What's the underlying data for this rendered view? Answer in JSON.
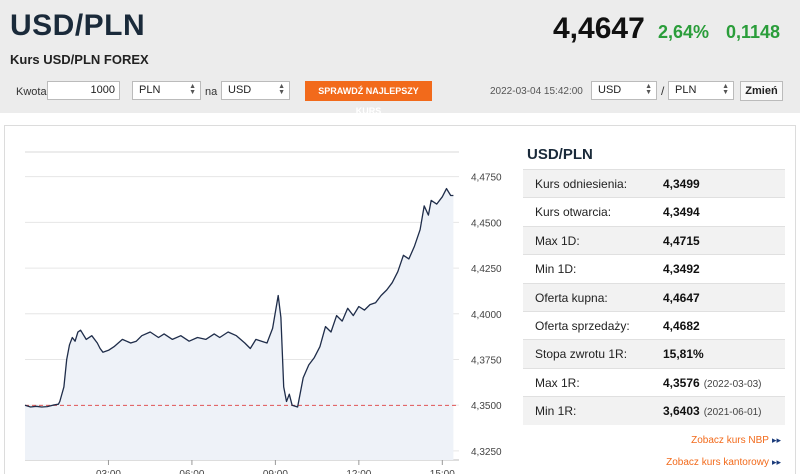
{
  "header": {
    "pair": "USD/PLN",
    "subtitle": "Kurs USD/PLN FOREX",
    "price": "4,4647",
    "change_pct": "2,64%",
    "change_abs": "0,1148",
    "change_color": "#2a9d3a"
  },
  "converter": {
    "amount_label": "Kwota",
    "amount_value": "1000",
    "from_currency": "PLN",
    "to_label": "na",
    "to_currency": "USD",
    "check_button": "SPRAWDŹ NAJLEPSZY KURS",
    "timestamp": "2022-03-04 15:42:00",
    "pair_from": "USD",
    "pair_sep": "/",
    "pair_to": "PLN",
    "change_button": "Zmień",
    "accent_color": "#f26a1b"
  },
  "stats": {
    "title": "USD/PLN",
    "rows": [
      {
        "label": "Kurs odniesienia:",
        "value": "4,3499",
        "date": ""
      },
      {
        "label": "Kurs otwarcia:",
        "value": "4,3494",
        "date": ""
      },
      {
        "label": "Max 1D:",
        "value": "4,4715",
        "date": ""
      },
      {
        "label": "Min 1D:",
        "value": "4,3492",
        "date": ""
      },
      {
        "label": "Oferta kupna:",
        "value": "4,4647",
        "date": ""
      },
      {
        "label": "Oferta sprzedaży:",
        "value": "4,4682",
        "date": ""
      },
      {
        "label": "Stopa zwrotu 1R:",
        "value": "15,81%",
        "date": ""
      },
      {
        "label": "Max 1R:",
        "value": "4,3576",
        "date": "(2022-03-03)"
      },
      {
        "label": "Min 1R:",
        "value": "3,6403",
        "date": "(2021-06-01)"
      }
    ]
  },
  "links": {
    "nbp": "Zobacz kurs NBP",
    "kantor": "Zobacz kurs kantorowy",
    "arrow_icon": "double-chevron-right-icon"
  },
  "chart_data": {
    "type": "area",
    "x_unit": "hours",
    "x_ticks": [
      {
        "value": 3,
        "label": "03:00"
      },
      {
        "value": 6,
        "label": "06:00"
      },
      {
        "value": 9,
        "label": "09:00"
      },
      {
        "value": 12,
        "label": "12:00"
      },
      {
        "value": 15,
        "label": "15:00"
      }
    ],
    "y_ticks": [
      {
        "value": 4.325,
        "label": "4,3250"
      },
      {
        "value": 4.35,
        "label": "4,3500"
      },
      {
        "value": 4.375,
        "label": "4,3750"
      },
      {
        "value": 4.4,
        "label": "4,4000"
      },
      {
        "value": 4.425,
        "label": "4,4250"
      },
      {
        "value": 4.45,
        "label": "4,4500"
      },
      {
        "value": 4.475,
        "label": "4,4750"
      }
    ],
    "xlim": [
      0,
      15.6
    ],
    "ylim": [
      4.32,
      4.4885
    ],
    "reference_line": {
      "value": 4.3499,
      "color": "#e05555",
      "style": "dashed"
    },
    "line_color": "#1f2d4a",
    "fill_color": "#eef2f8",
    "grid": "horizontal",
    "series": [
      {
        "x": [
          0.0,
          0.2,
          0.4,
          0.6,
          0.8,
          1.0,
          1.2,
          1.25,
          1.4,
          1.5,
          1.6,
          1.7,
          1.8,
          1.9,
          2.0,
          2.2,
          2.4,
          2.6,
          2.7,
          2.8,
          3.0,
          3.2,
          3.5,
          3.8,
          4.0,
          4.2,
          4.5,
          4.8,
          5.0,
          5.3,
          5.6,
          5.9,
          6.2,
          6.5,
          6.8,
          7.0,
          7.3,
          7.6,
          7.9,
          8.1,
          8.3,
          8.5,
          8.7,
          8.9,
          9.1,
          9.2,
          9.3,
          9.4,
          9.5,
          9.6,
          9.8,
          10.0,
          10.2,
          10.4,
          10.6,
          10.8,
          11.0,
          11.2,
          11.4,
          11.6,
          11.8,
          12.0,
          12.2,
          12.4,
          12.6,
          12.8,
          13.0,
          13.2,
          13.4,
          13.6,
          13.8,
          14.0,
          14.2,
          14.35,
          14.5,
          14.6,
          14.8,
          15.0,
          15.15,
          15.3,
          15.4
        ],
        "y": [
          4.35,
          4.349,
          4.3494,
          4.349,
          4.3492,
          4.35,
          4.3505,
          4.352,
          4.36,
          4.375,
          4.383,
          4.387,
          4.385,
          4.39,
          4.391,
          4.386,
          4.388,
          4.384,
          4.381,
          4.379,
          4.38,
          4.382,
          4.386,
          4.384,
          4.385,
          4.388,
          4.39,
          4.387,
          4.389,
          4.386,
          4.388,
          4.385,
          4.387,
          4.386,
          4.389,
          4.387,
          4.39,
          4.388,
          4.384,
          4.381,
          4.386,
          4.385,
          4.384,
          4.392,
          4.41,
          4.398,
          4.36,
          4.352,
          4.356,
          4.35,
          4.349,
          4.365,
          4.372,
          4.376,
          4.382,
          4.393,
          4.39,
          4.399,
          4.396,
          4.403,
          4.399,
          4.404,
          4.402,
          4.405,
          4.406,
          4.41,
          4.413,
          4.417,
          4.423,
          4.432,
          4.43,
          4.437,
          4.446,
          4.459,
          4.454,
          4.462,
          4.46,
          4.464,
          4.4685,
          4.4647,
          4.4647
        ]
      }
    ]
  }
}
